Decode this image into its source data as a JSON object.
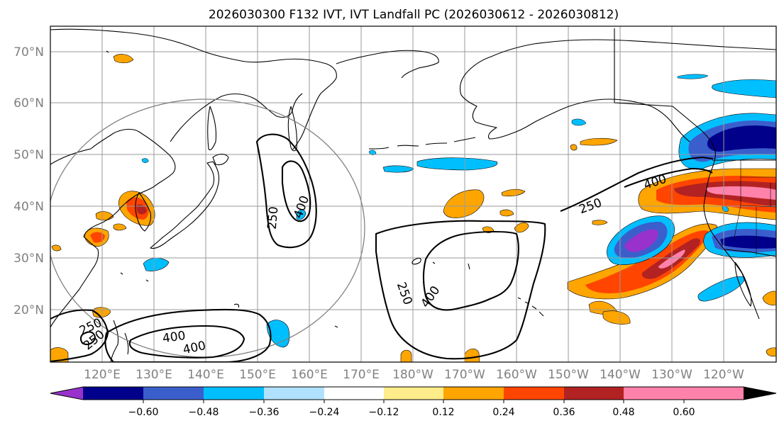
{
  "title": "2026030300 F132 IVT, IVT Landfall PC (2026030612 - 2026030812)",
  "map": {
    "lat_labels": [
      "70°N",
      "60°N",
      "50°N",
      "40°N",
      "30°N",
      "20°N"
    ],
    "lon_labels": [
      "120°E",
      "130°E",
      "140°E",
      "150°E",
      "160°E",
      "170°E",
      "180°W",
      "170°W",
      "160°W",
      "150°W",
      "140°W",
      "130°W",
      "120°W"
    ],
    "lat_range": [
      10,
      75
    ],
    "lon_range": [
      110,
      250
    ]
  },
  "contour_labels": {
    "japan_250": "250",
    "japan_400": "400",
    "pac_250": "250",
    "pac_400": "400",
    "wc_250": "250",
    "wc_400": "400",
    "sw_250a": "250",
    "sw_250b": "250",
    "s_400a": "400",
    "s_400b": "400"
  },
  "colorbar": {
    "ticks": [
      "−0.60",
      "−0.48",
      "−0.36",
      "−0.24",
      "−0.12",
      "0.12",
      "0.24",
      "0.36",
      "0.48",
      "0.60"
    ],
    "colors": [
      "#9932cc",
      "#00008b",
      "#3a5fcd",
      "#00bfff",
      "#b0e2ff",
      "#ffffff",
      "#ffec8b",
      "#ffa500",
      "#ff4500",
      "#b22222",
      "#ff82ab",
      "#ff82ab"
    ]
  },
  "colors": {
    "grid": "#9a9a9a",
    "label_gray": "#808080"
  }
}
